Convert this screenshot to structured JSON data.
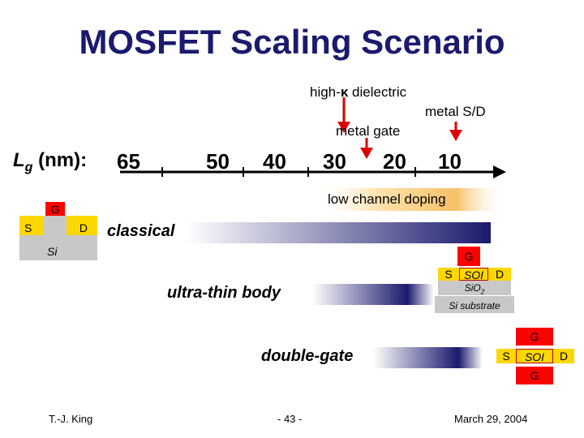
{
  "title": "MOSFET Scaling Scenario",
  "axis": {
    "label_main": "L",
    "label_sub": "g",
    "label_rest": " (nm):",
    "ticks": [
      "65",
      "50",
      "40",
      "30",
      "20",
      "10"
    ]
  },
  "annotations": {
    "high_k_pre": "high-",
    "high_k_symbol": "κ",
    "high_k_post": " dielectric",
    "metal_sd": "metal S/D",
    "metal_gate": "metal gate",
    "low_doping": "low channel doping"
  },
  "classical": {
    "label": "classical",
    "gate": "G",
    "source": "S",
    "drain": "D",
    "body": "Si"
  },
  "utb": {
    "label": "ultra-thin body",
    "gate": "G",
    "source": "S",
    "soi": "SOI",
    "drain": "D",
    "oxide": "SiO",
    "oxide_sub": "2",
    "substrate": "Si substrate"
  },
  "dg": {
    "label": "double-gate",
    "gate_top": "G",
    "source": "S",
    "soi": "SOI",
    "drain": "D",
    "gate_bottom": "G"
  },
  "footer": {
    "author": "T.-J. King",
    "page": "- 43 -",
    "date": "March 29, 2004"
  },
  "colors": {
    "title": "#1a1a6e",
    "bar_dark": "#1a1a6e",
    "gate_red": "#ff0000",
    "sd_yellow": "#ffd700",
    "arrow_red": "#dd0000"
  }
}
